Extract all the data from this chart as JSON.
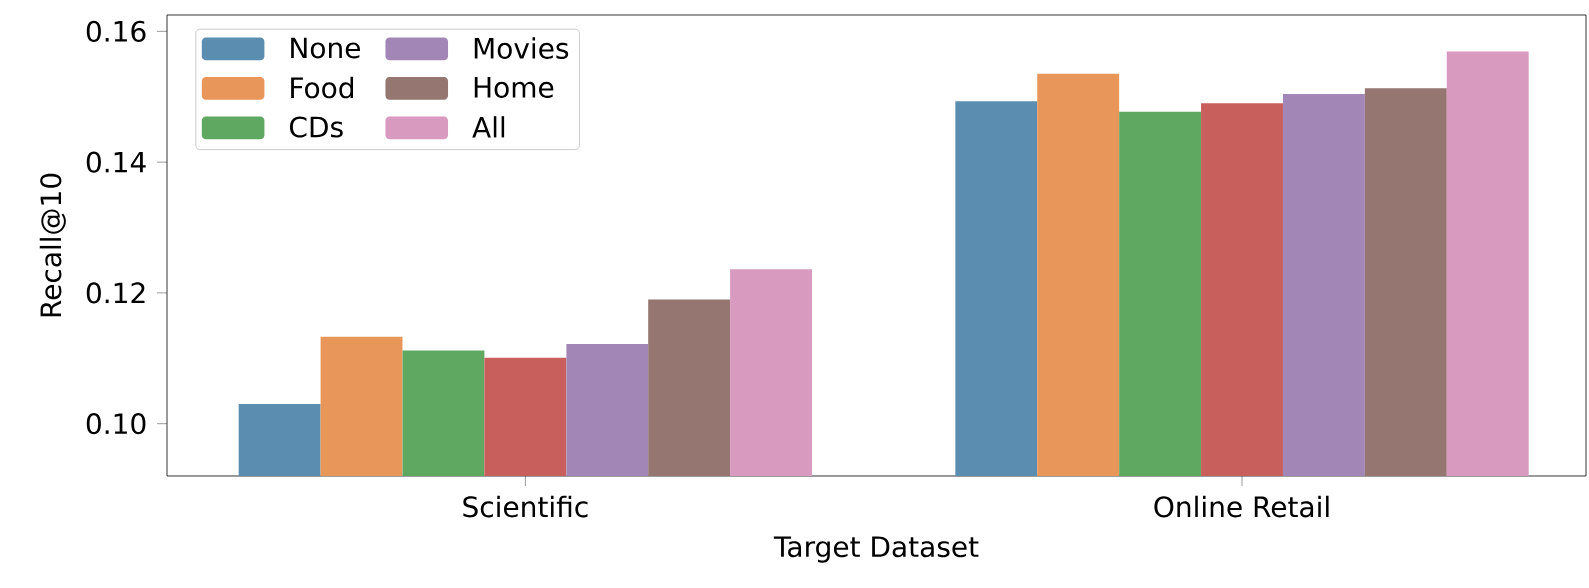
{
  "chart_data": {
    "type": "bar",
    "xlabel": "Target Dataset",
    "ylabel": "Recall@10",
    "categories": [
      "Scientific",
      "Online Retail"
    ],
    "series": [
      {
        "name": "None",
        "color": "#5b8db0",
        "values": [
          0.103,
          0.1493
        ]
      },
      {
        "name": "Food",
        "color": "#e8965a",
        "values": [
          0.1133,
          0.1535
        ]
      },
      {
        "name": "CDs",
        "color": "#5fa862",
        "values": [
          0.1112,
          0.1477
        ]
      },
      {
        "color": "#c85f5c",
        "values": [
          0.1101,
          0.149
        ]
      },
      {
        "name": "Movies",
        "color": "#a286b5",
        "values": [
          0.1122,
          0.1504
        ]
      },
      {
        "name": "Home",
        "color": "#957670",
        "values": [
          0.119,
          0.1513
        ]
      },
      {
        "name": "All",
        "color": "#d89abf",
        "values": [
          0.1236,
          0.1569
        ]
      }
    ],
    "ylim": [
      0.092,
      0.1625
    ],
    "yticks": [
      {
        "value": 0.1,
        "label": "0.10"
      },
      {
        "value": 0.12,
        "label": "0.12"
      },
      {
        "value": 0.14,
        "label": "0.14"
      },
      {
        "value": 0.16,
        "label": "0.16"
      }
    ],
    "legend": "top left",
    "grid": false
  }
}
